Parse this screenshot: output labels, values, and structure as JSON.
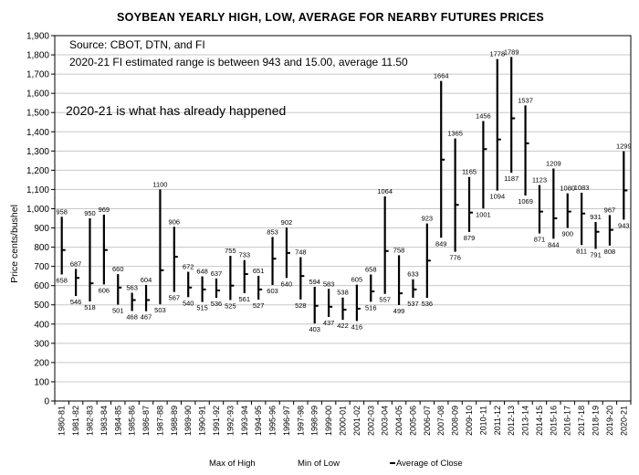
{
  "chart_data": {
    "type": "bar",
    "title": "SOYBEAN YEARLY HIGH, LOW, AVERAGE FOR NEARBY FUTURES PRICES",
    "ylabel": "Price cents/bushel",
    "ylim": [
      0,
      1900
    ],
    "yticks": [
      "0",
      "100",
      "200",
      "300",
      "400",
      "500",
      "600",
      "700",
      "800",
      "900",
      "1,000",
      "1,100",
      "1,200",
      "1,300",
      "1,400",
      "1,500",
      "1,600",
      "1,700",
      "1,800",
      "1,900"
    ],
    "grid": "horizontal",
    "annotations": [
      "Source: CBOT, DTN, and FI",
      "2020-21 FI estimated range is between 943 and 15.00, average 11.50",
      "2020-21 is what has already happened"
    ],
    "legend": [
      "Max of High",
      "Min of Low",
      "Average of Close"
    ],
    "legend_position": "bottom",
    "categories": [
      "1980-81",
      "1981-82",
      "1982-83",
      "1983-84",
      "1984-85",
      "1985-86",
      "1986-87",
      "1987-88",
      "1988-89",
      "1989-90",
      "1990-91",
      "1991-92",
      "1992-93",
      "1993-94",
      "1994-95",
      "1995-96",
      "1996-97",
      "1997-98",
      "1998-99",
      "1999-00",
      "2000-01",
      "2001-02",
      "2002-03",
      "2003-04",
      "2004-05",
      "2005-06",
      "2006-07",
      "2007-08",
      "2008-09",
      "2009-10",
      "2010-11",
      "2011-12",
      "2012-13",
      "2013-14",
      "2014-15",
      "2015-16",
      "2016-17",
      "2017-18",
      "2018-19",
      "2019-20",
      "2020-21"
    ],
    "series": [
      {
        "name": "Max of High",
        "values": [
          958,
          687,
          950,
          969,
          660,
          563,
          604,
          1100,
          906,
          672,
          648,
          637,
          755,
          733,
          651,
          853,
          902,
          748,
          594,
          583,
          538,
          605,
          658,
          1064,
          758,
          633,
          923,
          1664,
          1365,
          1165,
          1456,
          1778,
          1789,
          1537,
          1123,
          1209,
          1080,
          1083,
          931,
          967,
          1299
        ]
      },
      {
        "name": "Min of Low",
        "values": [
          658,
          546,
          518,
          606,
          501,
          468,
          467,
          503,
          567,
          540,
          515,
          536,
          525,
          561,
          527,
          603,
          640,
          528,
          403,
          437,
          422,
          416,
          516,
          557,
          499,
          537,
          536,
          849,
          776,
          879,
          1001,
          1094,
          1187,
          1069,
          871,
          844,
          900,
          811,
          791,
          808,
          943
        ]
      },
      {
        "name": "Average of Close",
        "values": [
          785,
          640,
          612,
          785,
          590,
          525,
          525,
          680,
          750,
          590,
          580,
          575,
          600,
          660,
          580,
          740,
          770,
          650,
          495,
          490,
          475,
          480,
          570,
          780,
          560,
          580,
          730,
          1255,
          1020,
          980,
          1310,
          1360,
          1470,
          1340,
          985,
          950,
          985,
          975,
          880,
          890,
          1095
        ]
      }
    ],
    "high_labels": [
      "958",
      "687",
      "950",
      "969",
      "660",
      "563",
      "604",
      "1100",
      "906",
      "672",
      "648",
      "637",
      "755",
      "733",
      "651",
      "853",
      "902",
      "748",
      "594",
      "583",
      "538",
      "605",
      "658",
      "1064",
      "758",
      "633",
      "923",
      "1664",
      "1365",
      "1165",
      "1456",
      "1778",
      "1789",
      "1537",
      "1123",
      "1209",
      "1080",
      "1083",
      "931",
      "967",
      "1299"
    ],
    "low_labels": [
      "658",
      "546",
      "518",
      "606",
      "501",
      "468",
      "467",
      "503",
      "567",
      "540",
      "515",
      "536",
      "525",
      "561",
      "527",
      "603",
      "640",
      "528",
      "403",
      "437",
      "422",
      "416",
      "516",
      "557",
      "499",
      "537",
      "536",
      "849",
      "776",
      "879",
      "1001",
      "1094",
      "1187",
      "1069",
      "871",
      "844",
      "900",
      "811",
      "791",
      "808",
      "943"
    ]
  }
}
